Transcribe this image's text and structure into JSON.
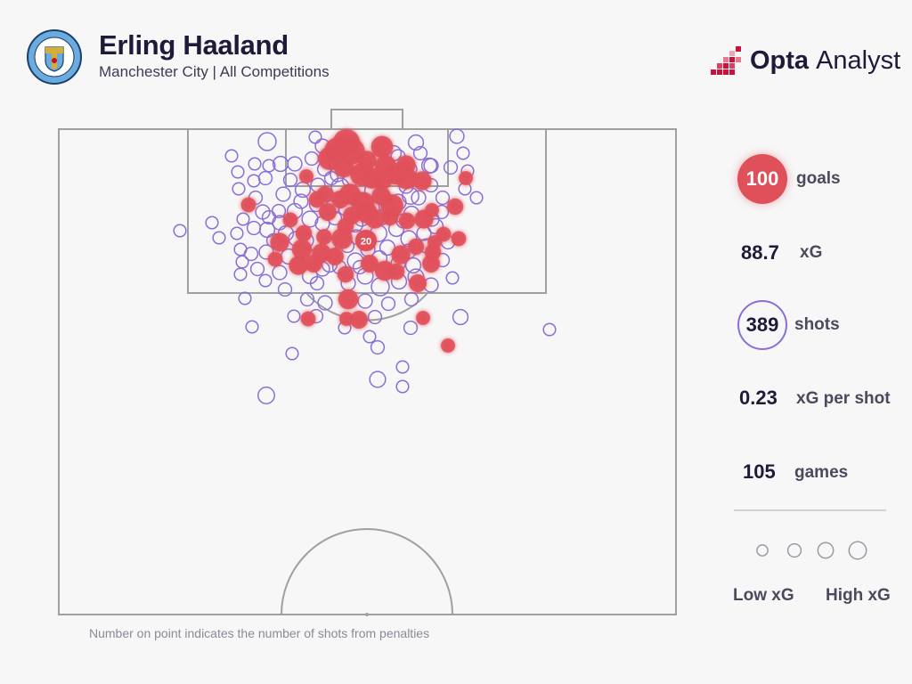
{
  "header": {
    "title": "Erling Haaland",
    "subtitle": "Manchester City | All Competitions",
    "crest_icon": "manchester-city-crest-icon",
    "brand_word_1": "Opta",
    "brand_word_2": "Analyst"
  },
  "stats": {
    "goals_value": "100",
    "goals_label": "goals",
    "xg_value": "88.7",
    "xg_label": "xG",
    "shots_value": "389",
    "shots_label": "shots",
    "xg_per_shot_value": "0.23",
    "xg_per_shot_label": "xG per shot",
    "games_value": "105",
    "games_label": "games"
  },
  "legend": {
    "low_label": "Low xG",
    "high_label": "High xG"
  },
  "footnote": "Number on point indicates the number of shots from penalties",
  "colors": {
    "goal": "#e0505a",
    "shot": "#8b6fd6",
    "pitch_line": "#a0a0a0",
    "background": "#f7f7f7"
  },
  "chart_data": {
    "type": "scatter",
    "title": "Erling Haaland",
    "subtitle": "Manchester City | All Competitions",
    "note": "Number on point indicates the number of shots from penalties",
    "penalty_point": {
      "value": 20,
      "outcome": "goal"
    },
    "series": [
      {
        "outcome": "goal",
        "points": [
          [
            389,
            160,
            0.3
          ],
          [
            378,
            168,
            0.22
          ],
          [
            395,
            170,
            0.28
          ],
          [
            370,
            178,
            0.2
          ],
          [
            429,
            165,
            0.18
          ],
          [
            412,
            180,
            0.12
          ],
          [
            433,
            186,
            0.16
          ],
          [
            456,
            185,
            0.12
          ],
          [
            386,
            188,
            0.14
          ],
          [
            406,
            196,
            0.2
          ],
          [
            418,
            200,
            0.16
          ],
          [
            444,
            196,
            0.14
          ],
          [
            456,
            200,
            0.18
          ],
          [
            474,
            203,
            0.12
          ],
          [
            430,
            202,
            0.12
          ],
          [
            393,
            218,
            0.16
          ],
          [
            382,
            224,
            0.1
          ],
          [
            408,
            228,
            0.18
          ],
          [
            428,
            220,
            0.12
          ],
          [
            440,
            231,
            0.2
          ],
          [
            412,
            239,
            0.16
          ],
          [
            395,
            242,
            0.1
          ],
          [
            356,
            224,
            0.08
          ],
          [
            368,
            238,
            0.1
          ],
          [
            421,
            246,
            0.12
          ],
          [
            438,
            244,
            0.08
          ],
          [
            476,
            246,
            0.12
          ],
          [
            457,
            248,
            0.08
          ],
          [
            511,
            232,
            0.08
          ],
          [
            279,
            230,
            0.06
          ],
          [
            326,
            247,
            0.06
          ],
          [
            341,
            262,
            0.08
          ],
          [
            364,
            266,
            0.07
          ],
          [
            384,
            268,
            0.16
          ],
          [
            388,
            254,
            0.08
          ],
          [
            314,
            272,
            0.12
          ],
          [
            339,
            280,
            0.14
          ],
          [
            361,
            284,
            0.12
          ],
          [
            376,
            288,
            0.1
          ],
          [
            415,
            296,
            0.1
          ],
          [
            432,
            304,
            0.14
          ],
          [
            450,
            286,
            0.12
          ],
          [
            467,
            277,
            0.08
          ],
          [
            486,
            283,
            0.08
          ],
          [
            498,
            263,
            0.06
          ],
          [
            515,
            268,
            0.06
          ],
          [
            335,
            298,
            0.12
          ],
          [
            352,
            296,
            0.1
          ],
          [
            388,
            308,
            0.08
          ],
          [
            445,
            305,
            0.08
          ],
          [
            469,
            318,
            0.1
          ],
          [
            484,
            296,
            0.1
          ],
          [
            309,
            291,
            0.06
          ],
          [
            391,
            336,
            0.14
          ],
          [
            346,
            358,
            0.06
          ],
          [
            389,
            358,
            0.05
          ],
          [
            403,
            359,
            0.1
          ],
          [
            475,
            357,
            0.05
          ],
          [
            503,
            388,
            0.05
          ],
          [
            344,
            198,
            0.05
          ],
          [
            485,
            236,
            0.05
          ],
          [
            523,
            200,
            0.05
          ],
          [
            488,
            272,
            0.05
          ],
          [
            365,
            218,
            0.08
          ]
        ]
      },
      {
        "outcome": "shot",
        "points": [
          [
            300,
            159,
            0.1
          ],
          [
            354,
            154,
            0.03
          ],
          [
            513,
            153,
            0.05
          ],
          [
            260,
            175,
            0.03
          ],
          [
            286,
            184,
            0.03
          ],
          [
            302,
            186,
            0.03
          ],
          [
            315,
            184,
            0.06
          ],
          [
            331,
            184,
            0.05
          ],
          [
            467,
            160,
            0.06
          ],
          [
            472,
            172,
            0.04
          ],
          [
            482,
            186,
            0.06
          ],
          [
            506,
            188,
            0.04
          ],
          [
            520,
            172,
            0.03
          ],
          [
            267,
            193,
            0.03
          ],
          [
            285,
            203,
            0.03
          ],
          [
            298,
            200,
            0.04
          ],
          [
            268,
            212,
            0.03
          ],
          [
            287,
            222,
            0.04
          ],
          [
            295,
            238,
            0.05
          ],
          [
            318,
            218,
            0.05
          ],
          [
            340,
            213,
            0.06
          ],
          [
            357,
            208,
            0.05
          ],
          [
            382,
            210,
            0.1
          ],
          [
            461,
            220,
            0.08
          ],
          [
            497,
            222,
            0.04
          ],
          [
            535,
            222,
            0.03
          ],
          [
            522,
            212,
            0.03
          ],
          [
            302,
            244,
            0.04
          ],
          [
            314,
            250,
            0.05
          ],
          [
            331,
            237,
            0.06
          ],
          [
            348,
            246,
            0.07
          ],
          [
            362,
            251,
            0.05
          ],
          [
            376,
            245,
            0.04
          ],
          [
            399,
            252,
            0.06
          ],
          [
            447,
            227,
            0.07
          ],
          [
            462,
            240,
            0.06
          ],
          [
            485,
            246,
            0.05
          ],
          [
            496,
            238,
            0.04
          ],
          [
            238,
            250,
            0.03
          ],
          [
            266,
            262,
            0.03
          ],
          [
            285,
            256,
            0.04
          ],
          [
            300,
            258,
            0.06
          ],
          [
            321,
            262,
            0.06
          ],
          [
            344,
            270,
            0.05
          ],
          [
            369,
            275,
            0.06
          ],
          [
            400,
            266,
            0.05
          ],
          [
            425,
            262,
            0.08
          ],
          [
            445,
            257,
            0.06
          ],
          [
            459,
            268,
            0.07
          ],
          [
            476,
            262,
            0.05
          ],
          [
            489,
            254,
            0.06
          ],
          [
            503,
            272,
            0.04
          ],
          [
            246,
            267,
            0.03
          ],
          [
            282,
            285,
            0.04
          ],
          [
            299,
            283,
            0.05
          ],
          [
            324,
            288,
            0.06
          ],
          [
            347,
            289,
            0.07
          ],
          [
            370,
            297,
            0.06
          ],
          [
            399,
            293,
            0.07
          ],
          [
            426,
            290,
            0.06
          ],
          [
            464,
            298,
            0.06
          ],
          [
            497,
            292,
            0.04
          ],
          [
            272,
            294,
            0.03
          ],
          [
            289,
            302,
            0.04
          ],
          [
            314,
            306,
            0.05
          ],
          [
            348,
            310,
            0.06
          ],
          [
            362,
            302,
            0.05
          ],
          [
            381,
            300,
            0.04
          ],
          [
            410,
            310,
            0.07
          ],
          [
            427,
            322,
            0.1
          ],
          [
            448,
            316,
            0.06
          ],
          [
            467,
            311,
            0.07
          ],
          [
            484,
            320,
            0.05
          ],
          [
            508,
            312,
            0.03
          ],
          [
            270,
            308,
            0.03
          ],
          [
            298,
            315,
            0.03
          ],
          [
            320,
            325,
            0.04
          ],
          [
            345,
            336,
            0.04
          ],
          [
            365,
            340,
            0.05
          ],
          [
            410,
            338,
            0.05
          ],
          [
            436,
            341,
            0.04
          ],
          [
            462,
            336,
            0.04
          ],
          [
            275,
            335,
            0.03
          ],
          [
            330,
            355,
            0.03
          ],
          [
            355,
            355,
            0.04
          ],
          [
            421,
            356,
            0.04
          ],
          [
            461,
            368,
            0.04
          ],
          [
            517,
            356,
            0.06
          ],
          [
            283,
            367,
            0.03
          ],
          [
            387,
            368,
            0.03
          ],
          [
            415,
            378,
            0.03
          ],
          [
            424,
            390,
            0.04
          ],
          [
            328,
            397,
            0.03
          ],
          [
            452,
            412,
            0.03
          ],
          [
            424,
            426,
            0.07
          ],
          [
            452,
            434,
            0.03
          ],
          [
            299,
            444,
            0.08
          ],
          [
            617,
            370,
            0.03
          ],
          [
            202,
            259,
            0.03
          ],
          [
            270,
            280,
            0.03
          ],
          [
            373,
            233,
            0.05
          ],
          [
            355,
            230,
            0.04
          ],
          [
            418,
            214,
            0.06
          ],
          [
            404,
            224,
            0.05
          ],
          [
            434,
            232,
            0.06
          ],
          [
            379,
            196,
            0.05
          ],
          [
            393,
            202,
            0.06
          ],
          [
            364,
            190,
            0.04
          ],
          [
            447,
            176,
            0.05
          ],
          [
            460,
            190,
            0.05
          ],
          [
            416,
            190,
            0.04
          ],
          [
            397,
            186,
            0.06
          ],
          [
            372,
            200,
            0.04
          ],
          [
            338,
            226,
            0.05
          ],
          [
            456,
            209,
            0.05
          ],
          [
            470,
            222,
            0.05
          ],
          [
            484,
            208,
            0.04
          ],
          [
            326,
            202,
            0.04
          ],
          [
            313,
            237,
            0.04
          ],
          [
            332,
            268,
            0.05
          ],
          [
            390,
            276,
            0.04
          ],
          [
            413,
            280,
            0.05
          ],
          [
            435,
            278,
            0.06
          ],
          [
            453,
            248,
            0.05
          ],
          [
            479,
            276,
            0.05
          ],
          [
            459,
            282,
            0.05
          ],
          [
            307,
            270,
            0.04
          ],
          [
            356,
            318,
            0.04
          ],
          [
            391,
            318,
            0.05
          ],
          [
            404,
            300,
            0.04
          ],
          [
            447,
            296,
            0.05
          ],
          [
            388,
            234,
            0.05
          ],
          [
            406,
            246,
            0.05
          ],
          [
            350,
            178,
            0.04
          ],
          [
            362,
            164,
            0.05
          ],
          [
            442,
            172,
            0.06
          ],
          [
            428,
            244,
            0.06
          ],
          [
            484,
            186,
            0.05
          ],
          [
            525,
            192,
            0.03
          ],
          [
            273,
            246,
            0.03
          ]
        ]
      }
    ],
    "legend_sizes_xg": [
      0.03,
      0.06,
      0.1,
      0.14
    ],
    "legend_labels": [
      "Low xG",
      "High xG"
    ]
  }
}
